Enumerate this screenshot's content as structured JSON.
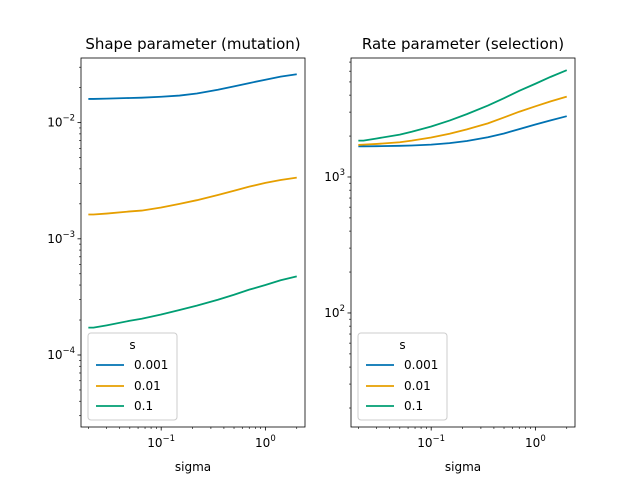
{
  "chart_data": [
    {
      "type": "line",
      "title": "Shape parameter (mutation)",
      "xlabel": "sigma",
      "ylabel": "",
      "xscale": "log",
      "yscale": "log",
      "xlim": [
        0.017,
        2.4
      ],
      "ylim": [
        2.4e-05,
        0.036
      ],
      "xticks": [
        {
          "value": 0.1,
          "base": "10",
          "exp": "−1"
        },
        {
          "value": 1,
          "base": "10",
          "exp": "0"
        }
      ],
      "yticks": [
        {
          "value": 0.0001,
          "base": "10",
          "exp": "−4"
        },
        {
          "value": 0.001,
          "base": "10",
          "exp": "−3"
        },
        {
          "value": 0.01,
          "base": "10",
          "exp": "−2"
        }
      ],
      "grid": false,
      "legend": {
        "title": "s",
        "placement": "lower-left"
      },
      "x": [
        0.02,
        0.0224,
        0.03,
        0.05,
        0.065,
        0.1,
        0.15,
        0.22,
        0.35,
        0.5,
        0.7,
        1.0,
        1.4,
        2.0
      ],
      "series": [
        {
          "name": "0.001",
          "color": "#0072b2",
          "values": [
            0.016,
            0.016,
            0.0161,
            0.0163,
            0.0164,
            0.0167,
            0.0171,
            0.0178,
            0.0192,
            0.0205,
            0.0219,
            0.0234,
            0.0249,
            0.0261
          ]
        },
        {
          "name": "0.01",
          "color": "#e69f00",
          "values": [
            0.00162,
            0.00162,
            0.00165,
            0.00172,
            0.00175,
            0.00186,
            0.002,
            0.00215,
            0.00238,
            0.00259,
            0.00281,
            0.00303,
            0.00321,
            0.00336
          ]
        },
        {
          "name": "0.1",
          "color": "#009e73",
          "values": [
            0.000172,
            0.000172,
            0.00018,
            0.000197,
            0.000205,
            0.000223,
            0.000244,
            0.000266,
            0.000299,
            0.00033,
            0.000365,
            0.0004,
            0.00044,
            0.000475
          ]
        }
      ]
    },
    {
      "type": "line",
      "title": "Rate parameter (selection)",
      "xlabel": "sigma",
      "ylabel": "",
      "xscale": "log",
      "yscale": "log",
      "xlim": [
        0.017,
        2.4
      ],
      "ylim": [
        14.5,
        7500
      ],
      "xticks": [
        {
          "value": 0.1,
          "base": "10",
          "exp": "−1"
        },
        {
          "value": 1,
          "base": "10",
          "exp": "0"
        }
      ],
      "yticks": [
        {
          "value": 100,
          "base": "10",
          "exp": "2"
        },
        {
          "value": 1000,
          "base": "10",
          "exp": "3"
        }
      ],
      "grid": false,
      "legend": {
        "title": "s",
        "placement": "lower-left"
      },
      "x": [
        0.02,
        0.0224,
        0.03,
        0.05,
        0.065,
        0.1,
        0.15,
        0.22,
        0.35,
        0.5,
        0.7,
        1.0,
        1.4,
        2.0
      ],
      "series": [
        {
          "name": "0.001",
          "color": "#0072b2",
          "values": [
            1680,
            1680,
            1685,
            1695,
            1705,
            1730,
            1775,
            1840,
            1960,
            2090,
            2250,
            2430,
            2610,
            2800
          ]
        },
        {
          "name": "0.01",
          "color": "#e69f00",
          "values": [
            1720,
            1730,
            1750,
            1800,
            1850,
            1950,
            2080,
            2240,
            2480,
            2740,
            3020,
            3310,
            3600,
            3900
          ]
        },
        {
          "name": "0.1",
          "color": "#009e73",
          "values": [
            1850,
            1850,
            1920,
            2050,
            2150,
            2350,
            2600,
            2900,
            3350,
            3800,
            4300,
            4850,
            5450,
            6100
          ]
        }
      ]
    }
  ]
}
